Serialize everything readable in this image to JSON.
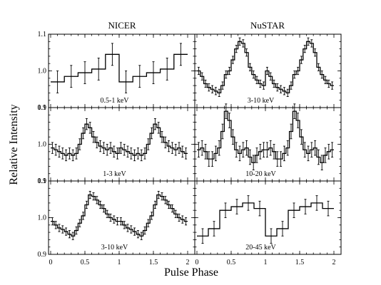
{
  "chart_data": {
    "type": "line",
    "xlabel": "Pulse Phase",
    "ylabel": "Relative Intensity",
    "columns": [
      "NICER",
      "NuSTAR"
    ],
    "xlim": [
      0,
      2
    ],
    "x_ticks": [
      0,
      0.5,
      1,
      1.5,
      2
    ],
    "x_tick_labels": [
      "0",
      "0.5",
      "1",
      "1.5",
      "2"
    ],
    "panels": [
      {
        "id": "nicer-0.5-1",
        "col": 0,
        "row": 0,
        "label": "0.5-1 keV",
        "ylim": [
          0.9,
          1.1
        ],
        "yticks": [
          0.9,
          1.0,
          1.1
        ],
        "ytick_labels": [
          "0.9",
          "1.0",
          "1.1"
        ],
        "values": [
          0.97,
          0.985,
          0.995,
          1.005,
          1.045,
          0.97,
          0.985,
          0.995,
          1.005,
          1.045
        ],
        "errors": [
          0.03,
          0.03,
          0.03,
          0.03,
          0.03,
          0.03,
          0.03,
          0.03,
          0.03,
          0.03
        ]
      },
      {
        "id": "nustar-3-10",
        "col": 1,
        "row": 0,
        "label": "3-10 keV",
        "ylim": [
          0.9,
          1.1
        ],
        "yticks": [
          0.9,
          1.0,
          1.1
        ],
        "ytick_labels": [
          "0.9",
          "1.0",
          "1.1"
        ],
        "values": [
          1.0,
          0.985,
          0.965,
          0.955,
          0.95,
          0.945,
          0.94,
          0.96,
          0.99,
          1.0,
          1.03,
          1.06,
          1.08,
          1.075,
          1.05,
          1.01,
          0.99,
          0.975,
          0.965,
          0.96,
          1.0,
          0.985,
          0.965,
          0.955,
          0.95,
          0.945,
          0.94,
          0.96,
          0.99,
          1.0,
          1.03,
          1.06,
          1.08,
          1.075,
          1.05,
          1.01,
          0.99,
          0.975,
          0.965,
          0.96
        ],
        "errors": [
          0.01,
          0.01,
          0.01,
          0.01,
          0.01,
          0.01,
          0.01,
          0.01,
          0.01,
          0.01,
          0.01,
          0.01,
          0.01,
          0.01,
          0.01,
          0.01,
          0.01,
          0.01,
          0.01,
          0.01,
          0.01,
          0.01,
          0.01,
          0.01,
          0.01,
          0.01,
          0.01,
          0.01,
          0.01,
          0.01,
          0.01,
          0.01,
          0.01,
          0.01,
          0.01,
          0.01,
          0.01,
          0.01,
          0.01,
          0.01
        ]
      },
      {
        "id": "nicer-1-3",
        "col": 0,
        "row": 1,
        "label": "1-3 keV",
        "ylim": [
          0.9,
          1.1
        ],
        "yticks": [
          0.9,
          1.0,
          1.1
        ],
        "ytick_labels": [
          "0.9",
          "1.0",
          "1.1"
        ],
        "values": [
          0.99,
          0.985,
          0.98,
          0.975,
          0.97,
          0.975,
          0.97,
          0.975,
          1.0,
          1.03,
          1.055,
          1.045,
          1.02,
          1.005,
          0.995,
          0.99,
          0.985,
          0.99,
          0.98,
          0.975,
          0.99,
          0.985,
          0.98,
          0.975,
          0.97,
          0.975,
          0.97,
          0.975,
          1.0,
          1.03,
          1.055,
          1.045,
          1.02,
          1.005,
          0.995,
          0.99,
          0.985,
          0.99,
          0.98,
          0.975
        ],
        "errors": [
          0.015,
          0.015,
          0.015,
          0.015,
          0.015,
          0.015,
          0.015,
          0.015,
          0.015,
          0.015,
          0.015,
          0.015,
          0.015,
          0.015,
          0.015,
          0.015,
          0.015,
          0.015,
          0.015,
          0.015,
          0.015,
          0.015,
          0.015,
          0.015,
          0.015,
          0.015,
          0.015,
          0.015,
          0.015,
          0.015,
          0.015,
          0.015,
          0.015,
          0.015,
          0.015,
          0.015,
          0.015,
          0.015,
          0.015,
          0.015
        ]
      },
      {
        "id": "nustar-10-20",
        "col": 1,
        "row": 1,
        "label": "10-20 keV",
        "ylim": [
          0.9,
          1.1
        ],
        "yticks": [
          0.9,
          1.0,
          1.1
        ],
        "ytick_labels": [
          "0.9",
          "1.0",
          "1.1"
        ],
        "values": [
          0.985,
          0.99,
          0.98,
          0.96,
          0.96,
          0.975,
          0.99,
          1.035,
          1.09,
          1.065,
          1.02,
          0.985,
          0.975,
          0.985,
          0.99,
          0.965,
          0.95,
          0.97,
          0.98,
          0.985,
          0.985,
          0.99,
          0.98,
          0.96,
          0.96,
          0.975,
          0.99,
          1.035,
          1.09,
          1.065,
          1.02,
          0.985,
          0.975,
          0.985,
          0.99,
          0.965,
          0.95,
          0.97,
          0.98,
          0.985
        ],
        "errors": [
          0.02,
          0.02,
          0.02,
          0.02,
          0.02,
          0.02,
          0.02,
          0.02,
          0.02,
          0.02,
          0.02,
          0.02,
          0.02,
          0.02,
          0.02,
          0.02,
          0.02,
          0.02,
          0.02,
          0.02,
          0.02,
          0.02,
          0.02,
          0.02,
          0.02,
          0.02,
          0.02,
          0.02,
          0.02,
          0.02,
          0.02,
          0.02,
          0.02,
          0.02,
          0.02,
          0.02,
          0.02,
          0.02,
          0.02,
          0.02
        ]
      },
      {
        "id": "nicer-3-10",
        "col": 0,
        "row": 2,
        "label": "3-10 keV",
        "ylim": [
          0.9,
          1.1
        ],
        "yticks": [
          0.9,
          1.0,
          1.1
        ],
        "ytick_labels": [
          "0.9",
          "1.0",
          "1.1"
        ],
        "values": [
          0.99,
          0.98,
          0.972,
          0.968,
          0.962,
          0.955,
          0.95,
          0.965,
          0.985,
          1.005,
          1.035,
          1.062,
          1.058,
          1.048,
          1.035,
          1.025,
          1.01,
          1.0,
          0.995,
          0.99,
          0.99,
          0.98,
          0.972,
          0.968,
          0.962,
          0.955,
          0.95,
          0.965,
          0.985,
          1.005,
          1.035,
          1.062,
          1.058,
          1.048,
          1.035,
          1.025,
          1.01,
          1.0,
          0.995,
          0.99
        ],
        "errors": [
          0.01,
          0.01,
          0.01,
          0.01,
          0.01,
          0.01,
          0.01,
          0.01,
          0.01,
          0.01,
          0.01,
          0.01,
          0.01,
          0.01,
          0.01,
          0.01,
          0.01,
          0.01,
          0.01,
          0.01,
          0.01,
          0.01,
          0.01,
          0.01,
          0.01,
          0.01,
          0.01,
          0.01,
          0.01,
          0.01,
          0.01,
          0.01,
          0.01,
          0.01,
          0.01,
          0.01,
          0.01,
          0.01,
          0.01,
          0.01
        ]
      },
      {
        "id": "nustar-20-45",
        "col": 1,
        "row": 2,
        "label": "20-45 keV",
        "ylim": [
          0.9,
          1.1
        ],
        "yticks": [
          0.9,
          1.0,
          1.1
        ],
        "ytick_labels": [
          "0.9",
          "1.0",
          "1.1"
        ],
        "values": [
          0.95,
          0.97,
          1.02,
          1.03,
          1.04,
          1.025,
          0.95,
          0.97,
          1.02,
          1.03,
          1.04,
          1.025
        ],
        "errors": [
          0.02,
          0.02,
          0.02,
          0.02,
          0.02,
          0.02,
          0.02,
          0.02,
          0.02,
          0.02,
          0.02,
          0.02
        ]
      }
    ]
  }
}
